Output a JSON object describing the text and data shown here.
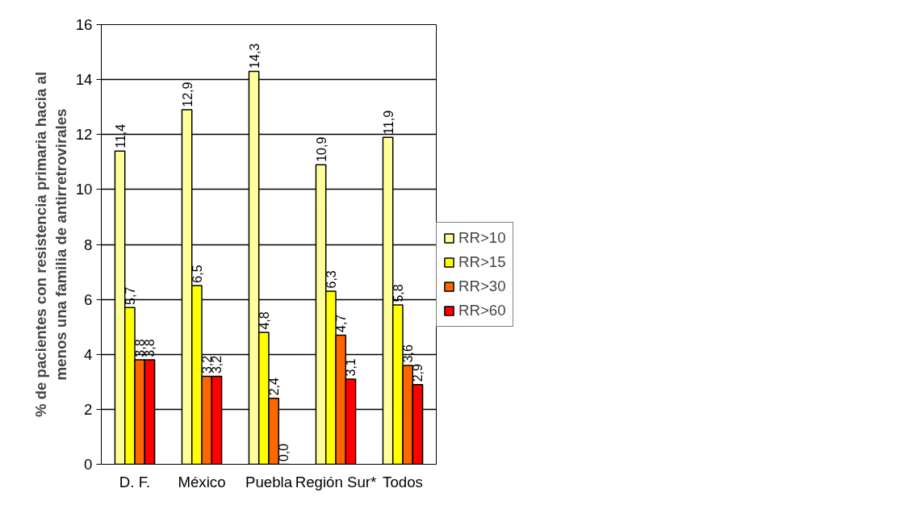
{
  "chart_data": {
    "type": "bar",
    "ylabel": "% de pacientes con resistencia primaria hacia al\nmenos una familia de antirretrovirales",
    "categories": [
      "D. F.",
      "México",
      "Puebla",
      "Región Sur*",
      "Todos"
    ],
    "series": [
      {
        "name": "RR>10",
        "color": "#ffff99",
        "values": [
          11.4,
          12.9,
          14.3,
          10.9,
          11.9
        ],
        "value_labels": [
          "11,4",
          "12,9",
          "14,3",
          "10,9",
          "11,9"
        ]
      },
      {
        "name": "RR>15",
        "color": "#ffff00",
        "values": [
          5.7,
          6.5,
          4.8,
          6.3,
          5.8
        ],
        "value_labels": [
          "5,7",
          "6,5",
          "4,8",
          "6,3",
          "5,8"
        ]
      },
      {
        "name": "RR>30",
        "color": "#ff6600",
        "values": [
          3.8,
          3.2,
          2.4,
          4.7,
          3.6
        ],
        "value_labels": [
          "3,8",
          "3,2",
          "2,4",
          "4,7",
          "3,6"
        ]
      },
      {
        "name": "RR>60",
        "color": "#ff0000",
        "values": [
          3.8,
          3.2,
          0.0,
          3.1,
          2.9
        ],
        "value_labels": [
          "3,8",
          "3,2",
          "0,0",
          "3,1",
          "2,9"
        ]
      }
    ],
    "ylim": [
      0,
      16
    ],
    "yticks": [
      0,
      2,
      4,
      6,
      8,
      10,
      12,
      14,
      16
    ],
    "grid": "y",
    "legend": "right"
  }
}
